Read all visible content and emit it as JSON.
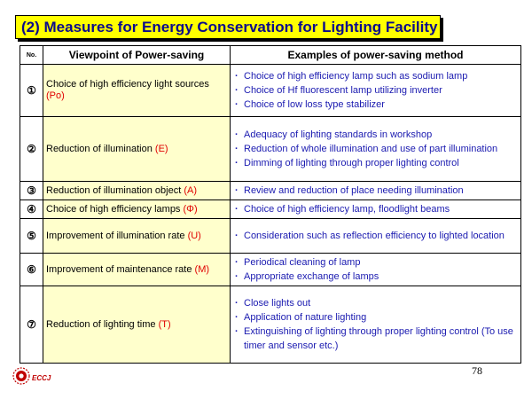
{
  "title": "(2) Measures for Energy Conservation for Lighting Facility",
  "table": {
    "headers": {
      "no": "No.",
      "viewpoint": "Viewpoint of Power-saving",
      "examples": "Examples of power-saving  method"
    },
    "rows": [
      {
        "num": "①",
        "viewpoint": "Choice of high efficiency light sources",
        "code": "(Po)",
        "examples": [
          "Choice of high efficiency lamp  such as sodium lamp",
          "Choice of Hf fluorescent lamp utilizing inverter",
          "Choice of low loss type stabilizer"
        ]
      },
      {
        "num": "②",
        "viewpoint": "Reduction of illumination",
        "code": "(E)",
        "examples": [
          "Adequacy of lighting standards in workshop",
          "Reduction of whole illumination and use of  part illumination",
          "Dimming of lighting through proper lighting control"
        ]
      },
      {
        "num": "③",
        "viewpoint": "Reduction of illumination object",
        "code": "(A)",
        "examples": [
          "Review and reduction of  place needing illumination"
        ]
      },
      {
        "num": "④",
        "viewpoint": "Choice of high efficiency lamps",
        "code": "(Φ)",
        "examples": [
          "Choice of high efficiency lamp, floodlight  beams"
        ]
      },
      {
        "num": "⑤",
        "viewpoint": "Improvement of illumination rate",
        "code": "(U)",
        "examples": [
          "Consideration such as reflection efficiency to lighted location"
        ]
      },
      {
        "num": "⑥",
        "viewpoint": "Improvement of maintenance rate",
        "code": "(M)",
        "examples": [
          "Periodical cleaning of lamp",
          "Appropriate exchange of lamps"
        ]
      },
      {
        "num": "⑦",
        "viewpoint": "Reduction of lighting time",
        "code": "(T)",
        "examples": [
          "Close lights out",
          "Application of nature lighting",
          "Extinguishing of lighting through proper lighting control (To use timer and sensor etc.)"
        ]
      }
    ]
  },
  "logo": {
    "text": "ECCJ",
    "color": "#c00000"
  },
  "page_number": "78",
  "colors": {
    "title_bg": "#ffff00",
    "title_text": "#0a0a8c",
    "viewpoint_bg": "#ffffcc",
    "code_text": "#e00000",
    "example_text": "#1a1ab0"
  }
}
